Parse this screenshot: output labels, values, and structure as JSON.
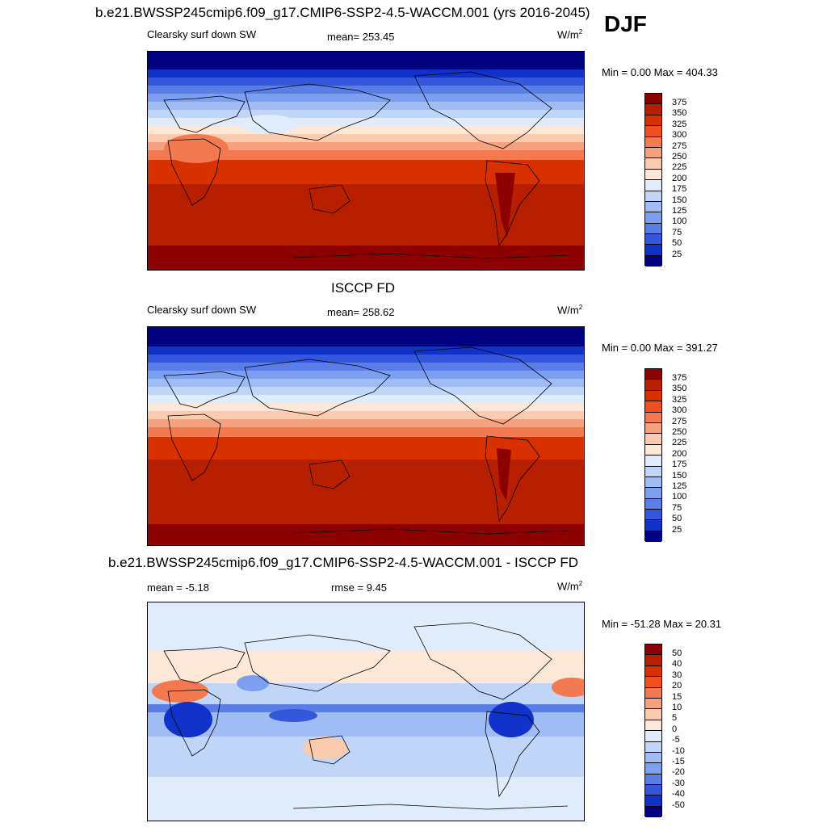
{
  "season": "DJF",
  "panels": [
    {
      "title": "b.e21.BWSSP245cmip6.f09_g17.CMIP6-SSP2-4.5-WACCM.001 (yrs 2016-2045)",
      "left_label": "Clearsky surf down SW",
      "center_label": "mean= 253.45",
      "units_base": "W/m",
      "units_exp": "2",
      "minmax": "Min =    0.00 Max = 404.33"
    },
    {
      "title": "ISCCP FD",
      "left_label": "Clearsky surf down SW",
      "center_label": "mean= 258.62",
      "units_base": "W/m",
      "units_exp": "2",
      "minmax": "Min =    0.00 Max = 391.27"
    },
    {
      "title": "b.e21.BWSSP245cmip6.f09_g17.CMIP6-SSP2-4.5-WACCM.001 - ISCCP FD",
      "left_label": "mean =  -5.18",
      "center_label": "rmse =    9.45",
      "units_base": "W/m",
      "units_exp": "2",
      "minmax": "Min = -51.28 Max =  20.31"
    }
  ],
  "colorbars": {
    "abs": {
      "labels": [
        "375",
        "350",
        "325",
        "300",
        "275",
        "250",
        "225",
        "200",
        "175",
        "150",
        "125",
        "100",
        "75",
        "50",
        "25"
      ],
      "colors": [
        "#8c0000",
        "#b81e00",
        "#d93000",
        "#f0501f",
        "#f37a50",
        "#f7a27f",
        "#fbcbb0",
        "#fde8d8",
        "#e0ecfb",
        "#c0d6f8",
        "#9fbcf4",
        "#7d9ff0",
        "#5a7de8",
        "#3557dc",
        "#1032c8",
        "#000080"
      ]
    },
    "diff": {
      "labels": [
        "50",
        "40",
        "30",
        "20",
        "15",
        "10",
        "5",
        "0",
        "-5",
        "-10",
        "-15",
        "-20",
        "-30",
        "-40",
        "-50"
      ],
      "colors": [
        "#8c0000",
        "#b81e00",
        "#d93000",
        "#f0501f",
        "#f37a50",
        "#f7a27f",
        "#fbcbb0",
        "#fde8d8",
        "#e0ecfb",
        "#c0d6f8",
        "#9fbcf4",
        "#7d9ff0",
        "#5a7de8",
        "#3557dc",
        "#1032c8",
        "#000080"
      ]
    }
  }
}
